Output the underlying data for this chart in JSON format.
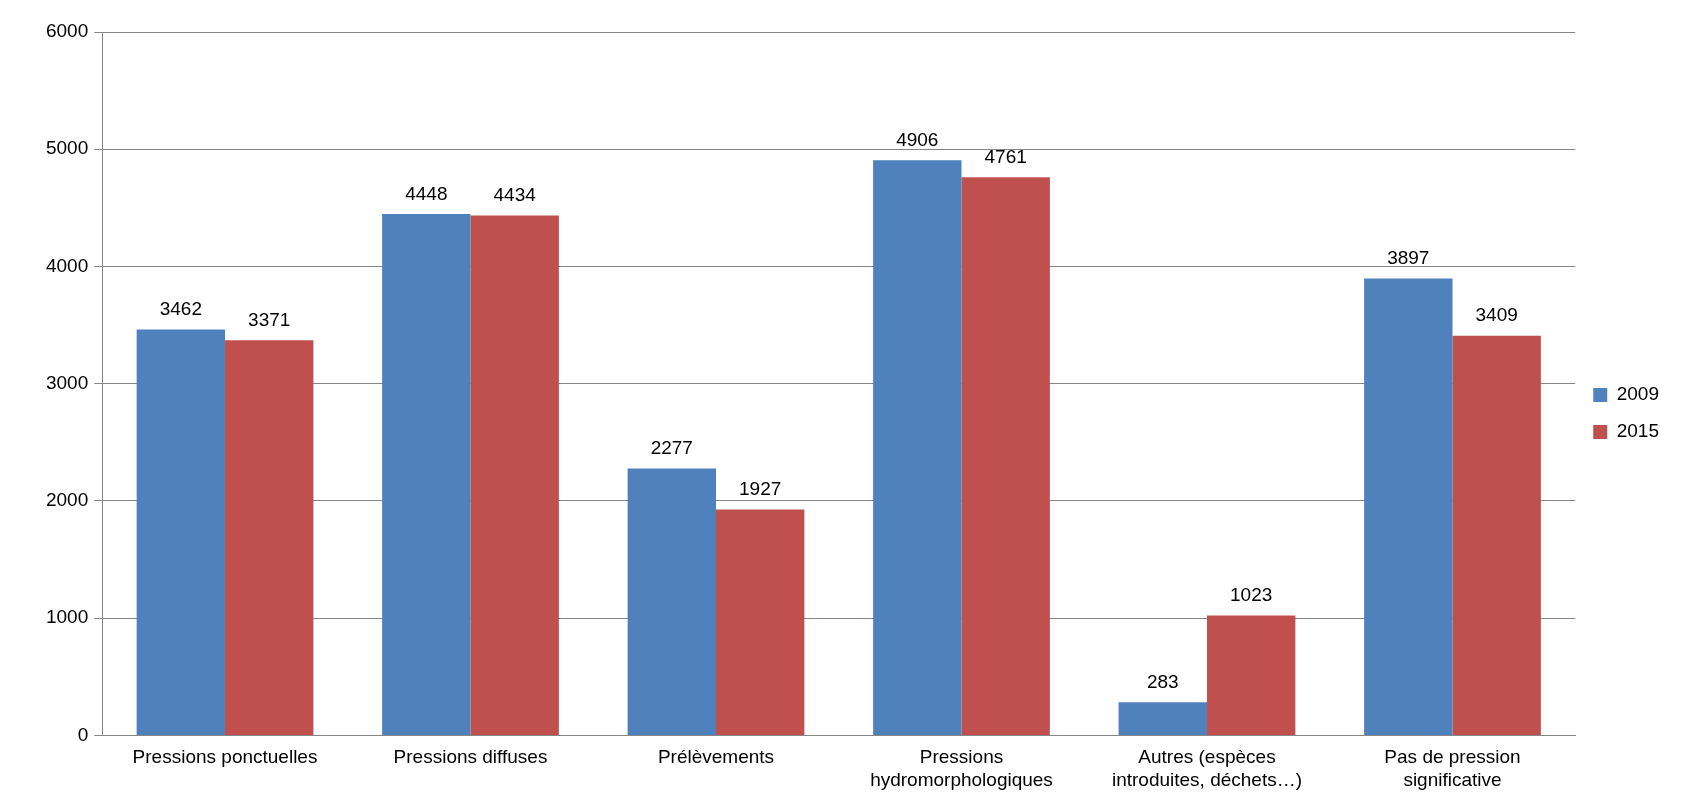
{
  "chart_data": {
    "type": "bar",
    "categories": [
      "Pressions ponctuelles",
      "Pressions diffuses",
      "Prélèvements",
      "Pressions\nhydromorphologiques",
      "Autres (espèces\nintroduites, déchets…)",
      "Pas de pression\nsignificative"
    ],
    "series": [
      {
        "name": "2009",
        "color": "#4f81bd",
        "values": [
          3462,
          4448,
          2277,
          4906,
          283,
          3897
        ]
      },
      {
        "name": "2015",
        "color": "#c0504d",
        "values": [
          3371,
          4434,
          1927,
          4761,
          1023,
          3409
        ]
      }
    ],
    "ylim": [
      0,
      6000
    ],
    "yticks": [
      0,
      1000,
      2000,
      3000,
      4000,
      5000,
      6000
    ],
    "grid": "y",
    "legend": "right",
    "data_labels": true
  }
}
